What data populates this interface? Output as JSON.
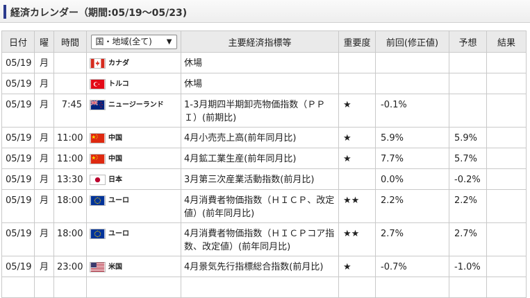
{
  "title": "経済カレンダー（期間:05/19～05/23)",
  "headers": {
    "date": "日付",
    "dow": "曜",
    "time": "時間",
    "country_select": "国・地域(全て)",
    "indicator": "主要経済指標等",
    "importance": "重要度",
    "previous": "前回(修正値)",
    "forecast": "予想",
    "result": "結果"
  },
  "rows": [
    {
      "date": "05/19",
      "dow": "月",
      "time": "",
      "flag": "canada-flag-icon",
      "country": "カナダ",
      "indicator": "休場",
      "stars": "",
      "previous": "",
      "forecast": "",
      "result": ""
    },
    {
      "date": "05/19",
      "dow": "月",
      "time": "",
      "flag": "turkey-flag-icon",
      "country": "トルコ",
      "indicator": "休場",
      "stars": "",
      "previous": "",
      "forecast": "",
      "result": ""
    },
    {
      "date": "05/19",
      "dow": "月",
      "time": "7:45",
      "flag": "new-zealand-flag-icon",
      "country": "ニュージーランド",
      "indicator": "1-3月期四半期卸売物価指数（ＰＰＩ）(前期比)",
      "stars": "★",
      "previous": "-0.1%",
      "forecast": "",
      "result": ""
    },
    {
      "date": "05/19",
      "dow": "月",
      "time": "11:00",
      "flag": "china-flag-icon",
      "country": "中国",
      "indicator": "4月小売売上高(前年同月比)",
      "stars": "★",
      "previous": "5.9%",
      "forecast": "5.9%",
      "result": ""
    },
    {
      "date": "05/19",
      "dow": "月",
      "time": "11:00",
      "flag": "china-flag-icon",
      "country": "中国",
      "indicator": "4月鉱工業生産(前年同月比)",
      "stars": "★",
      "previous": "7.7%",
      "forecast": "5.7%",
      "result": ""
    },
    {
      "date": "05/19",
      "dow": "月",
      "time": "13:30",
      "flag": "japan-flag-icon",
      "country": "日本",
      "indicator": "3月第三次産業活動指数(前月比)",
      "stars": "",
      "previous": "0.0%",
      "forecast": "-0.2%",
      "result": ""
    },
    {
      "date": "05/19",
      "dow": "月",
      "time": "18:00",
      "flag": "eu-flag-icon",
      "country": "ユーロ",
      "indicator": "4月消費者物価指数（ＨＩＣＰ、改定値）(前年同月比)",
      "stars": "★★",
      "previous": "2.2%",
      "forecast": "2.2%",
      "result": ""
    },
    {
      "date": "05/19",
      "dow": "月",
      "time": "18:00",
      "flag": "eu-flag-icon",
      "country": "ユーロ",
      "indicator": "4月消費者物価指数（ＨＩＣＰコア指数、改定値）(前年同月比)",
      "stars": "★★",
      "previous": "2.7%",
      "forecast": "2.7%",
      "result": ""
    },
    {
      "date": "05/19",
      "dow": "月",
      "time": "23:00",
      "flag": "usa-flag-icon",
      "country": "米国",
      "indicator": "4月景気先行指標総合指数(前月比)",
      "stars": "★",
      "previous": "-0.7%",
      "forecast": "-1.0%",
      "result": ""
    }
  ]
}
